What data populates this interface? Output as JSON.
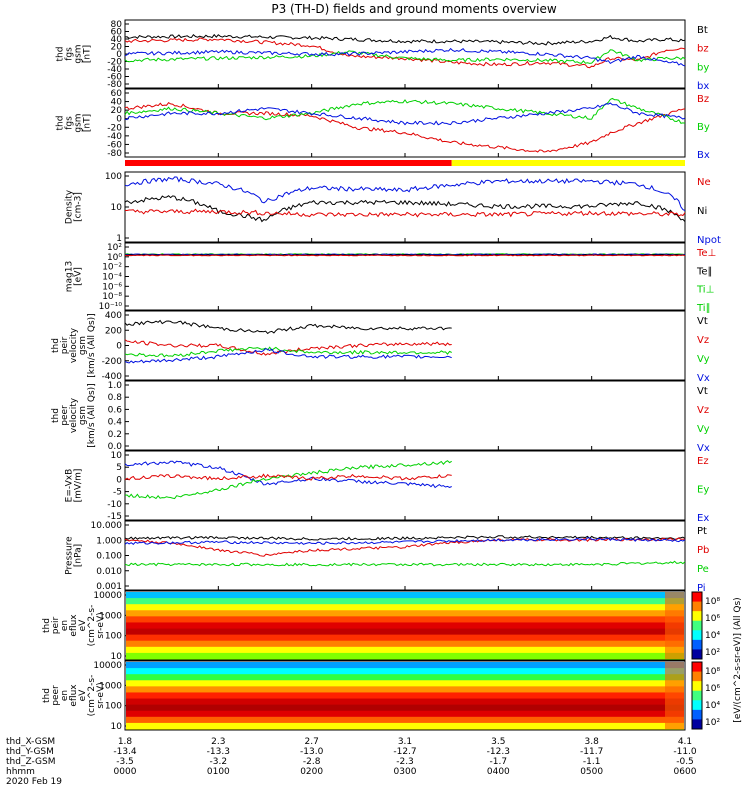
{
  "title": "P3 (TH-D) fields and ground moments overview",
  "colors": {
    "black": "#000000",
    "red": "#e00000",
    "green": "#00d000",
    "blue": "#0010e0",
    "yellow": "#ffff00",
    "bar_red": "#ff0000"
  },
  "chart_data": [
    {
      "id": "fgs_gsm",
      "type": "line",
      "ylabel": [
        "thd",
        "fgs",
        "gsm",
        "[nT]"
      ],
      "yticks": [
        "80",
        "60",
        "40",
        "20",
        "0",
        "-20",
        "-40",
        "-60",
        "-80"
      ],
      "ylim": [
        -80,
        80
      ],
      "legend": [
        {
          "label": "Bt",
          "color": "black"
        },
        {
          "label": "bz",
          "color": "red"
        },
        {
          "label": "by",
          "color": "green"
        },
        {
          "label": "bx",
          "color": "blue"
        }
      ],
      "series": [
        {
          "color": "black",
          "x": [
            0,
            1,
            2,
            2.4,
            3,
            3.5,
            4,
            4.5,
            5,
            5.2,
            5.5,
            5.8,
            6
          ],
          "y": [
            40,
            42,
            38,
            35,
            30,
            30,
            28,
            25,
            30,
            40,
            30,
            35,
            30
          ]
        },
        {
          "color": "red",
          "x": [
            0,
            1,
            2,
            2.4,
            3,
            3.5,
            4,
            4.5,
            5,
            5.2,
            5.5,
            5.8,
            6
          ],
          "y": [
            30,
            35,
            20,
            -5,
            -10,
            -20,
            -25,
            -20,
            -30,
            -10,
            -15,
            10,
            15
          ]
        },
        {
          "color": "green",
          "x": [
            0,
            1,
            2,
            2.4,
            3,
            3.5,
            4,
            4.5,
            5,
            5.2,
            5.5,
            5.8,
            6
          ],
          "y": [
            -15,
            -10,
            -5,
            5,
            -10,
            -15,
            -12,
            -15,
            -20,
            10,
            -15,
            -10,
            -10
          ]
        },
        {
          "color": "blue",
          "x": [
            0,
            1,
            2,
            2.4,
            3,
            3.5,
            4,
            4.5,
            5,
            5.2,
            5.5,
            5.8,
            6
          ],
          "y": [
            0,
            5,
            0,
            0,
            5,
            10,
            5,
            0,
            -10,
            -20,
            -5,
            -20,
            -25
          ]
        }
      ]
    },
    {
      "id": "fgs_gsm_b",
      "type": "line",
      "ylabel": [
        "thd",
        "fgs",
        "gsm",
        "[nT]"
      ],
      "yticks": [
        "60",
        "40",
        "20",
        "0",
        "-20",
        "-40",
        "-60",
        "-80"
      ],
      "ylim": [
        -80,
        60
      ],
      "legend": [
        {
          "label": "Bz",
          "color": "red"
        },
        {
          "label": "By",
          "color": "green"
        },
        {
          "label": "Bx",
          "color": "blue"
        }
      ],
      "series": [
        {
          "color": "red",
          "x": [
            0,
            0.5,
            1,
            1.5,
            2,
            2.5,
            3,
            3.5,
            4,
            4.5,
            5,
            5.2,
            5.5,
            6
          ],
          "y": [
            20,
            30,
            10,
            10,
            5,
            -20,
            -30,
            -50,
            -60,
            -70,
            -50,
            -30,
            -10,
            20
          ]
        },
        {
          "color": "green",
          "x": [
            0,
            0.5,
            1,
            1.5,
            2,
            2.5,
            3,
            3.5,
            4,
            4.5,
            5,
            5.2,
            5.5,
            6
          ],
          "y": [
            10,
            20,
            10,
            0,
            10,
            30,
            35,
            30,
            20,
            10,
            0,
            40,
            20,
            -10
          ]
        },
        {
          "color": "blue",
          "x": [
            0,
            0.5,
            1,
            1.5,
            2,
            2.5,
            3,
            3.5,
            4,
            4.5,
            5,
            5.2,
            5.5,
            6
          ],
          "y": [
            0,
            10,
            10,
            20,
            10,
            0,
            -10,
            -10,
            0,
            10,
            20,
            30,
            10,
            0
          ]
        }
      ]
    },
    {
      "id": "density",
      "type": "line",
      "yscale": "log",
      "ylabel": [
        "Density",
        "[cm-3]"
      ],
      "yticks": [
        "100",
        "10",
        "1"
      ],
      "ylim": [
        1,
        200
      ],
      "legend": [
        {
          "label": "Ne",
          "color": "red"
        },
        {
          "label": "Ni",
          "color": "black"
        },
        {
          "label": "Npot",
          "color": "blue"
        }
      ],
      "series": [
        {
          "color": "blue",
          "x": [
            0,
            0.5,
            1,
            1.5,
            2,
            3,
            4,
            5,
            5.5,
            6
          ],
          "y": [
            80,
            120,
            80,
            20,
            60,
            50,
            100,
            100,
            80,
            10
          ]
        },
        {
          "color": "black",
          "x": [
            0,
            0.5,
            1,
            1.5,
            2,
            3,
            4,
            5,
            5.5,
            6
          ],
          "y": [
            20,
            30,
            10,
            5,
            20,
            20,
            15,
            15,
            20,
            5
          ]
        },
        {
          "color": "red",
          "x": [
            0,
            1,
            2,
            3,
            4,
            5,
            6
          ],
          "y": [
            10,
            10,
            8,
            8,
            8,
            9,
            8
          ]
        }
      ]
    },
    {
      "id": "temp",
      "type": "line",
      "yscale": "log",
      "ylabel": [
        "mag13",
        "[eV]"
      ],
      "yticks": [
        "10²",
        "10⁰",
        "10⁻²",
        "10⁻⁴",
        "10⁻⁶",
        "10⁻⁸",
        "10⁻¹⁰"
      ],
      "legend": [
        {
          "label": "Te⊥",
          "color": "red"
        },
        {
          "label": "Te∥",
          "color": "black"
        },
        {
          "label": "Ti⊥",
          "color": "green"
        },
        {
          "label": "Ti∥",
          "color": "green"
        }
      ],
      "series": [
        {
          "color": "green",
          "x": [
            0,
            6
          ],
          "y": [
            1,
            1
          ]
        },
        {
          "color": "blue",
          "x": [
            0,
            6
          ],
          "y": [
            0.9,
            0.9
          ]
        },
        {
          "color": "black",
          "x": [
            0,
            6
          ],
          "y": [
            0.7,
            0.7
          ]
        },
        {
          "color": "red",
          "x": [
            0,
            6
          ],
          "y": [
            0.6,
            0.6
          ]
        }
      ]
    },
    {
      "id": "peir_velocity",
      "type": "line",
      "ylabel": [
        "thd",
        "peir",
        "velocity",
        "gsm",
        "[km/s (All Qs)]"
      ],
      "yticks": [
        "400",
        "200",
        "0",
        "-200",
        "-400"
      ],
      "ylim": [
        -400,
        400
      ],
      "legend": [
        {
          "label": "Vt",
          "color": "black"
        },
        {
          "label": "Vz",
          "color": "red"
        },
        {
          "label": "Vy",
          "color": "green"
        },
        {
          "label": "Vx",
          "color": "blue"
        }
      ],
      "series": [
        {
          "color": "black",
          "x": [
            0,
            0.5,
            1,
            1.5,
            2,
            2.5,
            3,
            3.5
          ],
          "y": [
            250,
            280,
            200,
            150,
            230,
            200,
            200,
            200
          ]
        },
        {
          "color": "red",
          "x": [
            0,
            0.5,
            1,
            1.5,
            2,
            2.5,
            3,
            3.5
          ],
          "y": [
            50,
            0,
            0,
            -100,
            -30,
            0,
            20,
            20
          ]
        },
        {
          "color": "green",
          "x": [
            0,
            0.5,
            1,
            1.5,
            2,
            2.5,
            3,
            3.5
          ],
          "y": [
            -100,
            -120,
            -60,
            -30,
            -80,
            -80,
            -80,
            -80
          ]
        },
        {
          "color": "blue",
          "x": [
            0,
            0.5,
            1,
            1.5,
            2,
            2.5,
            3,
            3.5
          ],
          "y": [
            -200,
            -170,
            -130,
            -50,
            -130,
            -130,
            -130,
            -130
          ]
        }
      ]
    },
    {
      "id": "peer_velocity",
      "type": "line",
      "ylabel": [
        "thd",
        "peer",
        "velocity",
        "gsm",
        "[km/s (All Qs)]"
      ],
      "yticks": [
        "1.0",
        "0.8",
        "0.6",
        "0.4",
        "0.2",
        "0.0"
      ],
      "ylim": [
        0,
        1
      ],
      "legend": [
        {
          "label": "Vt",
          "color": "black"
        },
        {
          "label": "Vz",
          "color": "red"
        },
        {
          "label": "Vy",
          "color": "green"
        },
        {
          "label": "Vx",
          "color": "blue"
        }
      ],
      "series": []
    },
    {
      "id": "efield",
      "type": "line",
      "ylabel": [
        "E=-VxB",
        "[mV/m]"
      ],
      "yticks": [
        "10",
        "5",
        "0",
        "-5",
        "-10",
        "-15"
      ],
      "ylim": [
        -15,
        10
      ],
      "legend": [
        {
          "label": "Ez",
          "color": "red"
        },
        {
          "label": "Ey",
          "color": "green"
        },
        {
          "label": "Ex",
          "color": "blue"
        }
      ],
      "series": [
        {
          "color": "blue",
          "x": [
            0,
            0.5,
            1,
            1.5,
            2,
            2.5,
            3,
            3.5
          ],
          "y": [
            5,
            6,
            4,
            -2,
            0,
            -1,
            -2,
            -3
          ]
        },
        {
          "color": "green",
          "x": [
            0,
            0.5,
            1,
            1.5,
            2,
            2.5,
            3,
            3.5
          ],
          "y": [
            -6,
            -7,
            -4,
            0,
            2,
            4,
            5,
            6
          ]
        },
        {
          "color": "red",
          "x": [
            0,
            0.5,
            1,
            1.5,
            2,
            2.5,
            3,
            3.5
          ],
          "y": [
            0,
            1,
            0,
            1,
            0,
            1,
            0,
            1
          ]
        }
      ]
    },
    {
      "id": "pressure",
      "type": "line",
      "yscale": "log",
      "ylabel": [
        "Pressure",
        "[nPa]"
      ],
      "yticks": [
        "10.000",
        "1.000",
        "0.100",
        "0.010",
        "0.001"
      ],
      "ylim": [
        0.001,
        10
      ],
      "legend": [
        {
          "label": "Pt",
          "color": "black"
        },
        {
          "label": "Pb",
          "color": "red"
        },
        {
          "label": "Pe",
          "color": "green"
        },
        {
          "label": "Pi",
          "color": "blue"
        }
      ],
      "series": [
        {
          "color": "black",
          "x": [
            0,
            1,
            2,
            3,
            4,
            5,
            6
          ],
          "y": [
            1,
            1.1,
            0.9,
            1,
            1.2,
            1.1,
            1
          ]
        },
        {
          "color": "red",
          "x": [
            0,
            0.5,
            1,
            1.5,
            2,
            3,
            4,
            5,
            6
          ],
          "y": [
            0.8,
            0.5,
            0.2,
            0.1,
            0.2,
            0.3,
            0.8,
            0.8,
            0.9
          ]
        },
        {
          "color": "blue",
          "x": [
            0,
            1,
            2,
            3,
            4,
            5,
            6
          ],
          "y": [
            0.5,
            0.6,
            0.5,
            0.6,
            0.8,
            0.9,
            0.7
          ]
        },
        {
          "color": "green",
          "x": [
            0,
            1,
            2,
            3,
            4,
            5,
            6
          ],
          "y": [
            0.03,
            0.03,
            0.03,
            0.03,
            0.03,
            0.03,
            0.04
          ]
        }
      ]
    },
    {
      "id": "peir_spec",
      "type": "heatmap",
      "ylabel": [
        "thd",
        "peir",
        "en",
        "eflux",
        "eV",
        "(cm^2-s-",
        "sr-eV)"
      ],
      "yticks": [
        "10000",
        "1000",
        "100",
        "10"
      ],
      "colorbar": {
        "ticks": [
          "10⁸",
          "10⁶",
          "10⁴",
          "10²"
        ]
      }
    },
    {
      "id": "peer_spec",
      "type": "heatmap",
      "ylabel": [
        "thd",
        "peer",
        "en",
        "eflux",
        "eV",
        "(cm^2-s-",
        "sr-eV)"
      ],
      "yticks": [
        "10000",
        "1000",
        "100",
        "10"
      ],
      "colorbar": {
        "ticks": [
          "10⁸",
          "10⁶",
          "10⁴",
          "10²"
        ],
        "label": "[eV/(cm^2-s-sr-eV)] (All Qs)"
      }
    }
  ],
  "time_axis": {
    "row_labels": [
      "thd_X-GSM",
      "thd_Y-GSM",
      "thd_Z-GSM",
      "hhmm",
      "2020 Feb 19"
    ],
    "columns": [
      {
        "x": "1.8",
        "y": "-13.4",
        "z": "-3.5",
        "t": "0000"
      },
      {
        "x": "2.3",
        "y": "-13.3",
        "z": "-3.2",
        "t": "0100"
      },
      {
        "x": "2.7",
        "y": "-13.0",
        "z": "-2.8",
        "t": "0200"
      },
      {
        "x": "3.1",
        "y": "-12.7",
        "z": "-2.3",
        "t": "0300"
      },
      {
        "x": "3.5",
        "y": "-12.3",
        "z": "-1.7",
        "t": "0400"
      },
      {
        "x": "3.8",
        "y": "-11.7",
        "z": "-1.1",
        "t": "0500"
      },
      {
        "x": "4.1",
        "y": "-11.0",
        "z": "-0.5",
        "t": "0600"
      }
    ]
  }
}
